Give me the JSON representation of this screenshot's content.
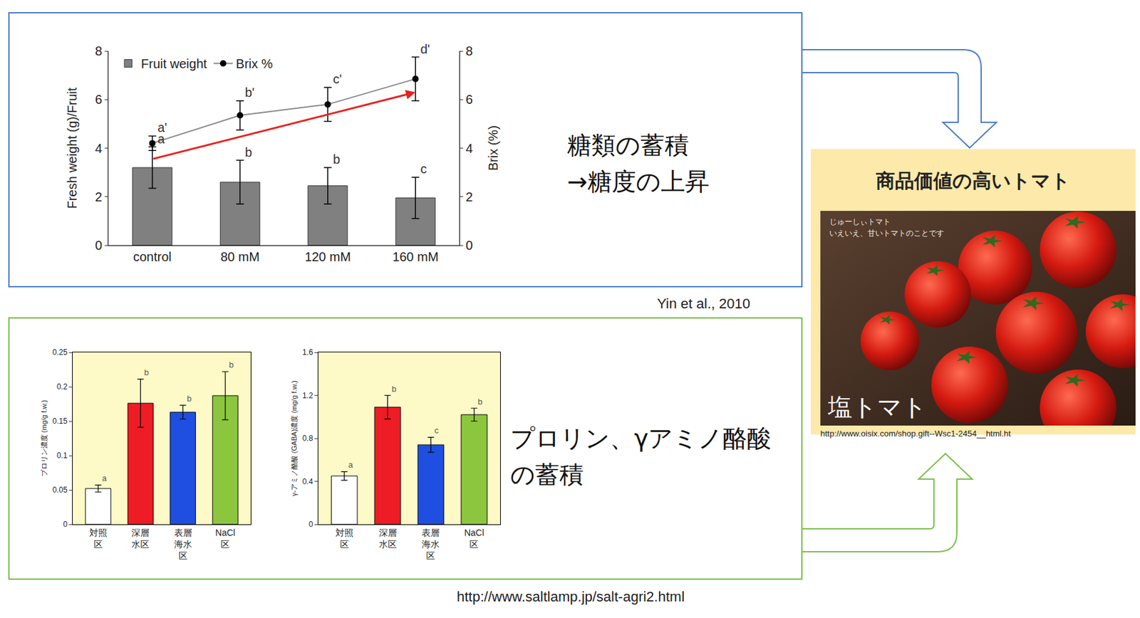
{
  "chart_data": [
    {
      "type": "bar",
      "categories": [
        "control",
        "80 mM",
        "120 mM",
        "160 mM"
      ],
      "ylabel": "Fresh weight (g)/Fruit",
      "y2label": "Brix (%)",
      "ylim": [
        0,
        8
      ],
      "yticks": [
        0,
        2,
        4,
        6,
        8
      ],
      "y2lim": [
        0,
        8
      ],
      "y2ticks": [
        0,
        2,
        4,
        6,
        8
      ],
      "legend": "upper left",
      "series": [
        {
          "name": "Fruit weight",
          "type": "bar",
          "color": "#808080",
          "values": [
            3.2,
            2.6,
            2.45,
            1.95
          ],
          "errors": [
            0.85,
            0.9,
            0.75,
            0.85
          ],
          "letters": [
            "a",
            "b",
            "b",
            "c"
          ]
        },
        {
          "name": "Brix %",
          "type": "line",
          "axis": "y2",
          "color": "#000000",
          "marker": "circle",
          "values": [
            4.2,
            5.35,
            5.8,
            6.85
          ],
          "errors": [
            0.3,
            0.6,
            0.7,
            0.9
          ],
          "letters": [
            "a'",
            "b'",
            "c'",
            "d'"
          ]
        }
      ],
      "trend_arrow": {
        "color": "#e8231f",
        "y2_start": 3.55,
        "y2_end": 6.3
      }
    },
    {
      "type": "bar",
      "categories": [
        "対照区",
        "深層水区",
        "表層海水区",
        "NaCl区"
      ],
      "ylabel": "プロリン濃度 (mg/g f.w.)",
      "ylim": [
        0,
        0.25
      ],
      "yticks": [
        0,
        0.05,
        0.1,
        0.15,
        0.2,
        0.25
      ],
      "colors": [
        "#ffffff",
        "#ee1c24",
        "#1f4fe0",
        "#8cc63f"
      ],
      "values": [
        0.052,
        0.176,
        0.163,
        0.187
      ],
      "errors": [
        0.005,
        0.035,
        0.01,
        0.035
      ],
      "letters": [
        "a",
        "b",
        "b",
        "b"
      ]
    },
    {
      "type": "bar",
      "categories": [
        "対照区",
        "深層水区",
        "表層海水区",
        "NaCl区"
      ],
      "ylabel": "γ-アミノ酪酸 (GABA)濃度 (mg/g f.w.)",
      "ylim": [
        0,
        1.6
      ],
      "yticks": [
        0,
        0.4,
        0.8,
        1.2,
        1.6
      ],
      "colors": [
        "#ffffff",
        "#ee1c24",
        "#1f4fe0",
        "#8cc63f"
      ],
      "values": [
        0.45,
        1.09,
        0.74,
        1.02
      ],
      "errors": [
        0.04,
        0.11,
        0.07,
        0.06
      ],
      "letters": [
        "a",
        "b",
        "c",
        "b"
      ]
    }
  ],
  "slide": {
    "top_caption": [
      "糖類の蓄積",
      "→糖度の上昇"
    ],
    "top_source": "Yin et al., 2010",
    "bottom_caption": [
      "プロリン、γアミノ酪酸",
      "の蓄積"
    ],
    "bottom_source": "http://www.saltlamp.jp/salt-agri2.html",
    "product": {
      "title": "商品価値の高いトマト",
      "photo_texts": [
        "じゅーしぃトマト",
        "いえいえ、甘いトマトのことです"
      ],
      "photo_label": "塩トマト",
      "source": "http://www.oisix.com/shop.gift--Wsc1-2454__html.ht"
    }
  }
}
